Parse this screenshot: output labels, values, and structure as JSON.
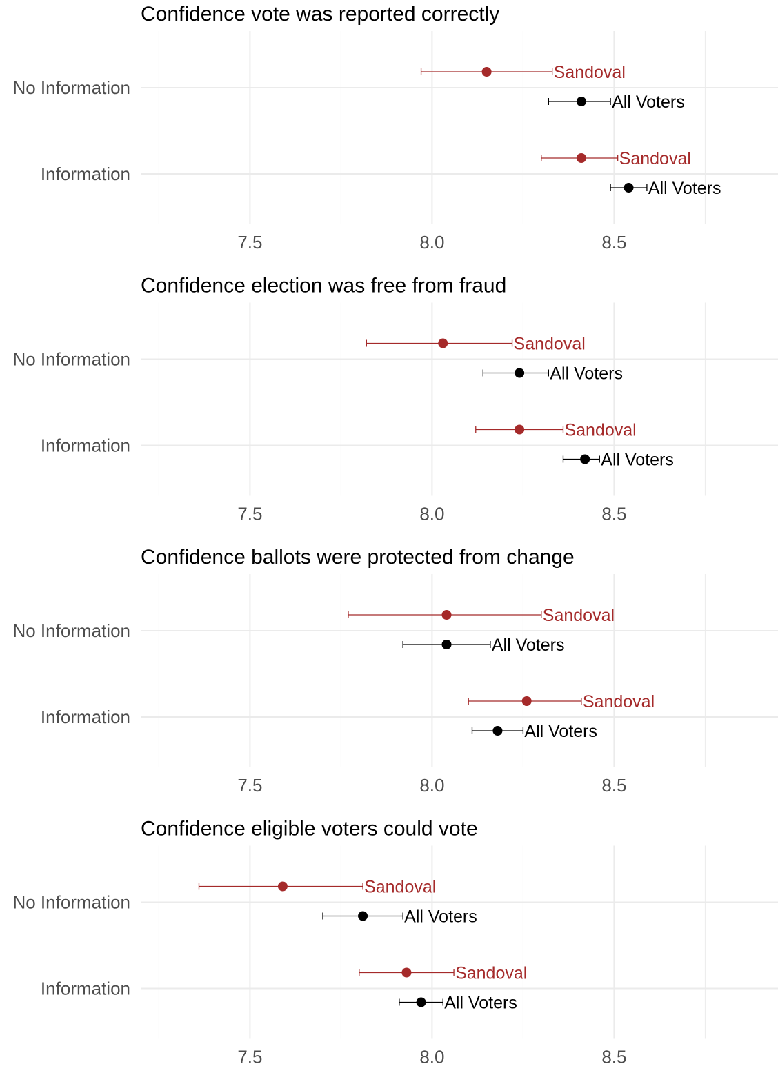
{
  "colors": {
    "sandoval": "#a52a2a",
    "all_voters": "#000000",
    "grid": "#ebebeb",
    "axis_text": "#4d4d4d",
    "title": "#000000"
  },
  "chart_data": [
    {
      "type": "dot-errorbar",
      "title": "Confidence vote was reported correctly",
      "categories": [
        "No Information",
        "Information"
      ],
      "xlim": [
        7.2,
        8.95
      ],
      "xticks": [
        7.5,
        8.0,
        8.5
      ],
      "xtick_labels": [
        "7.5",
        "8.0",
        "8.5"
      ],
      "grid": true,
      "series": [
        {
          "name": "Sandoval",
          "color": "#a52a2a",
          "points": [
            {
              "category": "No Information",
              "x": 8.15,
              "low": 7.97,
              "high": 8.33
            },
            {
              "category": "Information",
              "x": 8.41,
              "low": 8.3,
              "high": 8.51
            }
          ]
        },
        {
          "name": "All Voters",
          "color": "#000000",
          "points": [
            {
              "category": "No Information",
              "x": 8.41,
              "low": 8.32,
              "high": 8.49
            },
            {
              "category": "Information",
              "x": 8.54,
              "low": 8.49,
              "high": 8.59
            }
          ]
        }
      ]
    },
    {
      "type": "dot-errorbar",
      "title": "Confidence election was free from fraud",
      "categories": [
        "No Information",
        "Information"
      ],
      "xlim": [
        7.2,
        8.95
      ],
      "xticks": [
        7.5,
        8.0,
        8.5
      ],
      "xtick_labels": [
        "7.5",
        "8.0",
        "8.5"
      ],
      "grid": true,
      "series": [
        {
          "name": "Sandoval",
          "color": "#a52a2a",
          "points": [
            {
              "category": "No Information",
              "x": 8.03,
              "low": 7.82,
              "high": 8.22
            },
            {
              "category": "Information",
              "x": 8.24,
              "low": 8.12,
              "high": 8.36
            }
          ]
        },
        {
          "name": "All Voters",
          "color": "#000000",
          "points": [
            {
              "category": "No Information",
              "x": 8.24,
              "low": 8.14,
              "high": 8.32
            },
            {
              "category": "Information",
              "x": 8.42,
              "low": 8.36,
              "high": 8.46
            }
          ]
        }
      ]
    },
    {
      "type": "dot-errorbar",
      "title": "Confidence ballots were protected from change",
      "categories": [
        "No Information",
        "Information"
      ],
      "xlim": [
        7.2,
        8.95
      ],
      "xticks": [
        7.5,
        8.0,
        8.5
      ],
      "xtick_labels": [
        "7.5",
        "8.0",
        "8.5"
      ],
      "grid": true,
      "series": [
        {
          "name": "Sandoval",
          "color": "#a52a2a",
          "points": [
            {
              "category": "No Information",
              "x": 8.04,
              "low": 7.77,
              "high": 8.3
            },
            {
              "category": "Information",
              "x": 8.26,
              "low": 8.1,
              "high": 8.41
            }
          ]
        },
        {
          "name": "All Voters",
          "color": "#000000",
          "points": [
            {
              "category": "No Information",
              "x": 8.04,
              "low": 7.92,
              "high": 8.16
            },
            {
              "category": "Information",
              "x": 8.18,
              "low": 8.11,
              "high": 8.25
            }
          ]
        }
      ]
    },
    {
      "type": "dot-errorbar",
      "title": "Confidence eligible voters could vote",
      "categories": [
        "No Information",
        "Information"
      ],
      "xlim": [
        7.2,
        8.95
      ],
      "xticks": [
        7.5,
        8.0,
        8.5
      ],
      "xtick_labels": [
        "7.5",
        "8.0",
        "8.5"
      ],
      "grid": true,
      "series": [
        {
          "name": "Sandoval",
          "color": "#a52a2a",
          "points": [
            {
              "category": "No Information",
              "x": 7.59,
              "low": 7.36,
              "high": 7.81
            },
            {
              "category": "Information",
              "x": 7.93,
              "low": 7.8,
              "high": 8.06
            }
          ]
        },
        {
          "name": "All Voters",
          "color": "#000000",
          "points": [
            {
              "category": "No Information",
              "x": 7.81,
              "low": 7.7,
              "high": 7.92
            },
            {
              "category": "Information",
              "x": 7.97,
              "low": 7.91,
              "high": 8.03
            }
          ]
        }
      ]
    }
  ]
}
